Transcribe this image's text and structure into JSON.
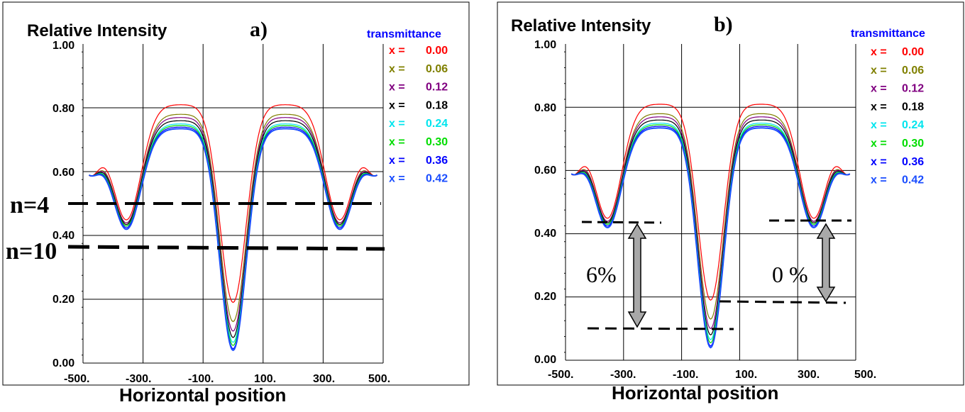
{
  "chart_data": [
    {
      "type": "line",
      "panel_label": "a)",
      "title": "Relative Intensity",
      "xlabel": "Horizontal position",
      "ylabel": "",
      "xlim": [
        -500,
        500
      ],
      "ylim": [
        0,
        1
      ],
      "x_ticks": [
        "-500.",
        "-300.",
        "-100.",
        "100.",
        "300.",
        "500."
      ],
      "y_ticks": [
        "0.00",
        "0.20",
        "0.40",
        "0.60",
        "0.80",
        "1.00"
      ],
      "grid": true,
      "legend_title": "transmittance",
      "legend_placement": "right",
      "series": [
        {
          "name": "x = 0.00",
          "label": "x =",
          "value": "0.00",
          "color": "#ff0000",
          "peak": 0.81,
          "center": 0.19,
          "side": 0.45
        },
        {
          "name": "x = 0.06",
          "label": "x =",
          "value": "0.06",
          "color": "#808000",
          "peak": 0.78,
          "center": 0.13,
          "side": 0.44
        },
        {
          "name": "x = 0.12",
          "label": "x =",
          "value": "0.12",
          "color": "#800080",
          "peak": 0.77,
          "center": 0.1,
          "side": 0.44
        },
        {
          "name": "x = 0.18",
          "label": "x =",
          "value": "0.18",
          "color": "#000000",
          "peak": 0.76,
          "center": 0.08,
          "side": 0.435
        },
        {
          "name": "x = 0.24",
          "label": "x =",
          "value": "0.24",
          "color": "#00e5ee",
          "peak": 0.75,
          "center": 0.065,
          "side": 0.43
        },
        {
          "name": "x = 0.30",
          "label": "x =",
          "value": "0.30",
          "color": "#00dd00",
          "peak": 0.745,
          "center": 0.055,
          "side": 0.43
        },
        {
          "name": "x = 0.36",
          "label": "x =",
          "value": "0.36",
          "color": "#0000ff",
          "peak": 0.74,
          "center": 0.045,
          "side": 0.425
        },
        {
          "name": "x = 0.42",
          "label": "x =",
          "value": "0.42",
          "color": "#1a4dff",
          "peak": 0.735,
          "center": 0.04,
          "side": 0.42
        }
      ],
      "annotations": [
        {
          "text": "n=4",
          "y": 0.5
        },
        {
          "text": "n=10",
          "y": 0.36
        }
      ]
    },
    {
      "type": "line",
      "panel_label": "b)",
      "title": "Relative  Intensity",
      "xlabel": "Horizontal position",
      "ylabel": "",
      "xlim": [
        -500,
        500
      ],
      "ylim": [
        0,
        1
      ],
      "x_ticks": [
        "-500.",
        "-300.",
        "-100.",
        "100.",
        "300.",
        "500."
      ],
      "y_ticks": [
        "0.00",
        "0.20",
        "0.40",
        "0.60",
        "0.80",
        "1.00"
      ],
      "grid": true,
      "legend_title": "transmittance",
      "legend_placement": "right",
      "series": [
        {
          "name": "x = 0.00",
          "label": "x =",
          "value": "0.00",
          "color": "#ff0000",
          "peak": 0.81,
          "center": 0.19,
          "side": 0.45
        },
        {
          "name": "x = 0.06",
          "label": "x =",
          "value": "0.06",
          "color": "#808000",
          "peak": 0.78,
          "center": 0.13,
          "side": 0.44
        },
        {
          "name": "x = 0.12",
          "label": "x =",
          "value": "0.12",
          "color": "#800080",
          "peak": 0.77,
          "center": 0.1,
          "side": 0.44
        },
        {
          "name": "x = 0.18",
          "label": "x =",
          "value": "0.18",
          "color": "#000000",
          "peak": 0.76,
          "center": 0.08,
          "side": 0.435
        },
        {
          "name": "x = 0.24",
          "label": "x =",
          "value": "0.24",
          "color": "#00e5ee",
          "peak": 0.75,
          "center": 0.065,
          "side": 0.43
        },
        {
          "name": "x = 0.30",
          "label": "x =",
          "value": "0.30",
          "color": "#00dd00",
          "peak": 0.745,
          "center": 0.055,
          "side": 0.43
        },
        {
          "name": "x = 0.36",
          "label": "x =",
          "value": "0.36",
          "color": "#0000ff",
          "peak": 0.74,
          "center": 0.045,
          "side": 0.425
        },
        {
          "name": "x = 0.42",
          "label": "x =",
          "value": "0.42",
          "color": "#1a4dff",
          "peak": 0.735,
          "center": 0.04,
          "side": 0.42
        }
      ],
      "annotations": [
        {
          "text": "6%",
          "from": 0.1,
          "to": 0.44
        },
        {
          "text": "0 %",
          "from": 0.18,
          "to": 0.44
        }
      ]
    }
  ]
}
